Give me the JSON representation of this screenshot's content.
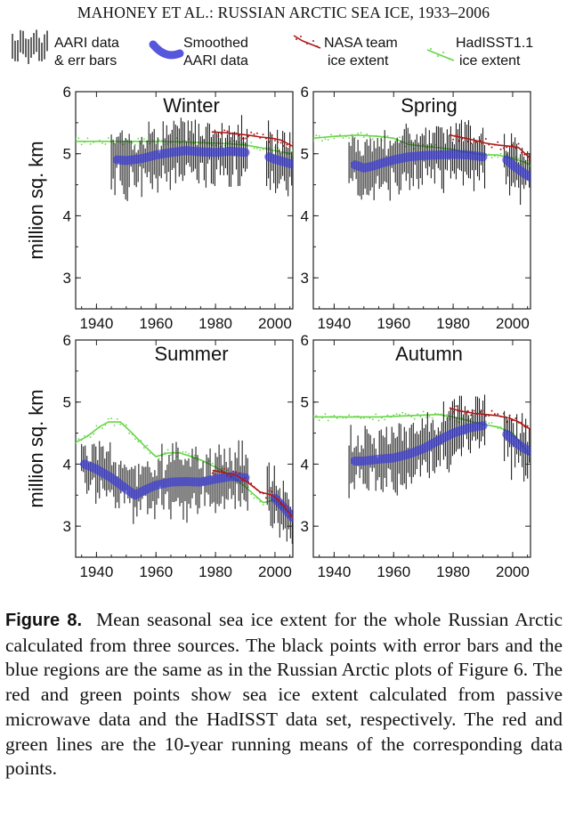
{
  "header": "MAHONEY ET AL.: RUSSIAN ARCTIC SEA ICE, 1933–2006",
  "legend": {
    "aari": [
      "AARI data",
      "& err bars"
    ],
    "smoothed": [
      "Smoothed",
      "AARI data"
    ],
    "nasa": [
      "NASA team",
      "ice extent"
    ],
    "hadisst": [
      "HadISST1.1",
      "ice extent"
    ]
  },
  "colors": {
    "aari": "#222222",
    "smoothed": "#3a3ad8",
    "nasa": "#b01818",
    "hadisst": "#66d646"
  },
  "chart_data": [
    {
      "type": "line",
      "title": "Winter",
      "ylabel": "million sq. km",
      "xlim": [
        1933,
        2006
      ],
      "ylim": [
        2.5,
        6
      ],
      "xticks": [
        1940,
        1960,
        1980,
        2000
      ],
      "yticks": [
        3,
        4,
        5,
        6
      ],
      "series": [
        {
          "name": "Smoothed AARI data",
          "x": [
            1947,
            1950,
            1955,
            1960,
            1965,
            1970,
            1975,
            1980,
            1985,
            1990,
            1998,
            2000,
            2003,
            2006
          ],
          "values": [
            4.9,
            4.89,
            4.92,
            4.98,
            5.02,
            5.05,
            5.03,
            5.02,
            5.04,
            5.02,
            4.95,
            4.91,
            4.87,
            4.83
          ]
        },
        {
          "name": "NASA team ice extent",
          "x": [
            1979,
            1983,
            1987,
            1991,
            1995,
            1999,
            2002,
            2006
          ],
          "values": [
            5.35,
            5.34,
            5.32,
            5.3,
            5.27,
            5.25,
            5.22,
            5.12
          ]
        },
        {
          "name": "HadISST1.1 ice extent",
          "x": [
            1933,
            1950,
            1960,
            1970,
            1975,
            1980,
            1985,
            1990,
            1995,
            2000,
            2003,
            2006
          ],
          "values": [
            5.2,
            5.2,
            5.2,
            5.19,
            5.18,
            5.17,
            5.16,
            5.14,
            5.1,
            5.05,
            5.02,
            5.0
          ]
        }
      ]
    },
    {
      "type": "line",
      "title": "Spring",
      "xlim": [
        1933,
        2006
      ],
      "ylim": [
        2.5,
        6
      ],
      "xticks": [
        1940,
        1960,
        1980,
        2000
      ],
      "yticks": [
        3,
        4,
        5,
        6
      ],
      "series": [
        {
          "name": "Smoothed AARI data",
          "x": [
            1947,
            1950,
            1953,
            1956,
            1960,
            1965,
            1970,
            1975,
            1980,
            1985,
            1990,
            1998,
            2001,
            2004,
            2006
          ],
          "values": [
            4.82,
            4.77,
            4.8,
            4.85,
            4.9,
            4.95,
            4.97,
            4.98,
            4.99,
            4.98,
            4.95,
            4.9,
            4.78,
            4.68,
            4.62
          ]
        },
        {
          "name": "NASA team ice extent",
          "x": [
            1979,
            1983,
            1987,
            1991,
            1995,
            1999,
            2002,
            2006
          ],
          "values": [
            5.3,
            5.26,
            5.22,
            5.17,
            5.14,
            5.12,
            5.1,
            4.92
          ]
        },
        {
          "name": "HadISST1.1 ice extent",
          "x": [
            1933,
            1940,
            1948,
            1955,
            1960,
            1965,
            1970,
            1975,
            1980,
            1985,
            1990,
            1995,
            2000,
            2003,
            2006
          ],
          "values": [
            5.25,
            5.28,
            5.3,
            5.28,
            5.25,
            5.15,
            5.12,
            5.1,
            5.07,
            5.02,
            4.98,
            4.98,
            4.92,
            4.88,
            4.82
          ]
        }
      ]
    },
    {
      "type": "line",
      "title": "Summer",
      "ylabel": "million sq. km",
      "xlim": [
        1933,
        2006
      ],
      "ylim": [
        2.5,
        6
      ],
      "xticks": [
        1940,
        1960,
        1980,
        2000
      ],
      "yticks": [
        3,
        4,
        5,
        6
      ],
      "series": [
        {
          "name": "Smoothed AARI data",
          "x": [
            1936,
            1940,
            1945,
            1950,
            1953,
            1957,
            1960,
            1965,
            1970,
            1975,
            1980,
            1985,
            1990,
            1995,
            2000,
            2003,
            2006
          ],
          "values": [
            4.0,
            3.92,
            3.78,
            3.6,
            3.5,
            3.6,
            3.66,
            3.71,
            3.72,
            3.71,
            3.76,
            3.8,
            3.78,
            3.55,
            3.45,
            3.3,
            3.14
          ]
        },
        {
          "name": "NASA team ice extent",
          "x": [
            1979,
            1983,
            1987,
            1991,
            1995,
            1999,
            2002,
            2006
          ],
          "values": [
            3.9,
            3.86,
            3.82,
            3.7,
            3.55,
            3.5,
            3.38,
            3.14
          ]
        },
        {
          "name": "HadISST1.1 ice extent",
          "x": [
            1933,
            1937,
            1941,
            1944,
            1948,
            1952,
            1956,
            1960,
            1964,
            1968,
            1972,
            1976,
            1980,
            1984,
            1988,
            1992,
            1996,
            2000,
            2003,
            2006
          ],
          "values": [
            4.35,
            4.45,
            4.6,
            4.68,
            4.68,
            4.5,
            4.3,
            4.12,
            4.18,
            4.18,
            4.12,
            4.05,
            3.95,
            3.85,
            3.72,
            3.55,
            3.38,
            3.42,
            3.28,
            3.16
          ]
        }
      ]
    },
    {
      "type": "line",
      "title": "Autumn",
      "xlim": [
        1933,
        2006
      ],
      "ylim": [
        2.5,
        6
      ],
      "xticks": [
        1940,
        1960,
        1980,
        2000
      ],
      "yticks": [
        3,
        4,
        5,
        6
      ],
      "series": [
        {
          "name": "Smoothed AARI data",
          "x": [
            1947,
            1950,
            1955,
            1960,
            1965,
            1970,
            1975,
            1980,
            1985,
            1990,
            1998,
            2001,
            2004,
            2006
          ],
          "values": [
            4.05,
            4.05,
            4.08,
            4.1,
            4.16,
            4.25,
            4.38,
            4.5,
            4.58,
            4.62,
            4.48,
            4.35,
            4.25,
            4.2
          ]
        },
        {
          "name": "NASA team ice extent",
          "x": [
            1979,
            1983,
            1987,
            1991,
            1995,
            1999,
            2002,
            2006
          ],
          "values": [
            4.9,
            4.85,
            4.82,
            4.8,
            4.78,
            4.74,
            4.68,
            4.56
          ]
        },
        {
          "name": "HadISST1.1 ice extent",
          "x": [
            1933,
            1945,
            1955,
            1965,
            1975,
            1980,
            1985,
            1990,
            1995,
            2000,
            2003,
            2006
          ],
          "values": [
            4.76,
            4.76,
            4.76,
            4.78,
            4.8,
            4.76,
            4.7,
            4.64,
            4.6,
            4.5,
            4.32,
            4.12
          ]
        }
      ]
    }
  ],
  "caption": {
    "lead": "Figure 8.",
    "text": "Mean seasonal sea ice extent for the whole Russian Arctic calculated from three sources. The black points with error bars and the blue regions are the same as in the Russian Arctic plots of Figure 6. The red and green points show sea ice extent calculated from passive microwave data and the HadISST data set, respectively. The red and green lines are the 10-year running means of the corresponding data points."
  }
}
